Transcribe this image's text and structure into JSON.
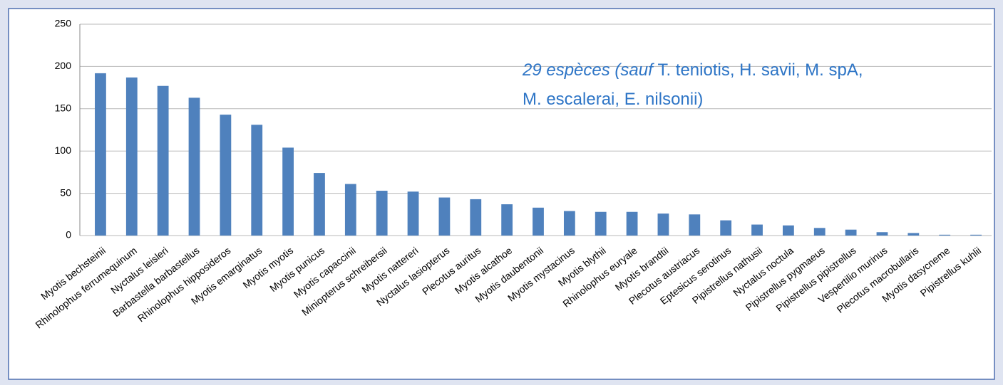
{
  "chart_data": {
    "type": "bar",
    "categories": [
      "Myotis bechsteinii",
      "Rhinolophus ferrumequinum",
      "Nyctalus leisleri",
      "Barbastella barbastellus",
      "Rhinolophus hipposideros",
      "Myotis emarginatus",
      "Myotis myotis",
      "Myotis punicus",
      "Myotis capaccinii",
      "Miniopterus schreibersii",
      "Myotis nattereri",
      "Nyctalus lasiopterus",
      "Plecotus auritus",
      "Myotis alcathoe",
      "Myotis daubentonii",
      "Myotis mystacinus",
      "Myotis blythii",
      "Rhinolophus euryale",
      "Myotis brandtii",
      "Plecotus austriacus",
      "Eptesicus serotinus",
      "Pipistrellus nathusii",
      "Nyctalus noctula",
      "Pipistrellus pygmaeus",
      "Pipistrellus pipistrellus",
      "Vespertilio murinus",
      "Plecotus macrobullaris",
      "Myotis dasycneme",
      "Pipistrellus kuhlii"
    ],
    "values": [
      192,
      187,
      177,
      163,
      143,
      131,
      104,
      74,
      61,
      53,
      52,
      45,
      43,
      37,
      33,
      29,
      28,
      28,
      26,
      25,
      18,
      13,
      12,
      9,
      7,
      4,
      3,
      1,
      1
    ],
    "color": "#4f81bd",
    "ylim": [
      0,
      250
    ],
    "yticks": [
      0,
      50,
      100,
      150,
      200,
      250
    ],
    "grid": true,
    "annotation": {
      "color": "#2e75c6",
      "lines": [
        [
          {
            "text": "29 espèces (sauf ",
            "italic": true
          },
          {
            "text": "T. teniotis, H. savii, M. spA,",
            "italic": false
          }
        ],
        [
          {
            "text": "M. escalerai, E. nilsonii)",
            "italic": false
          }
        ]
      ]
    }
  }
}
